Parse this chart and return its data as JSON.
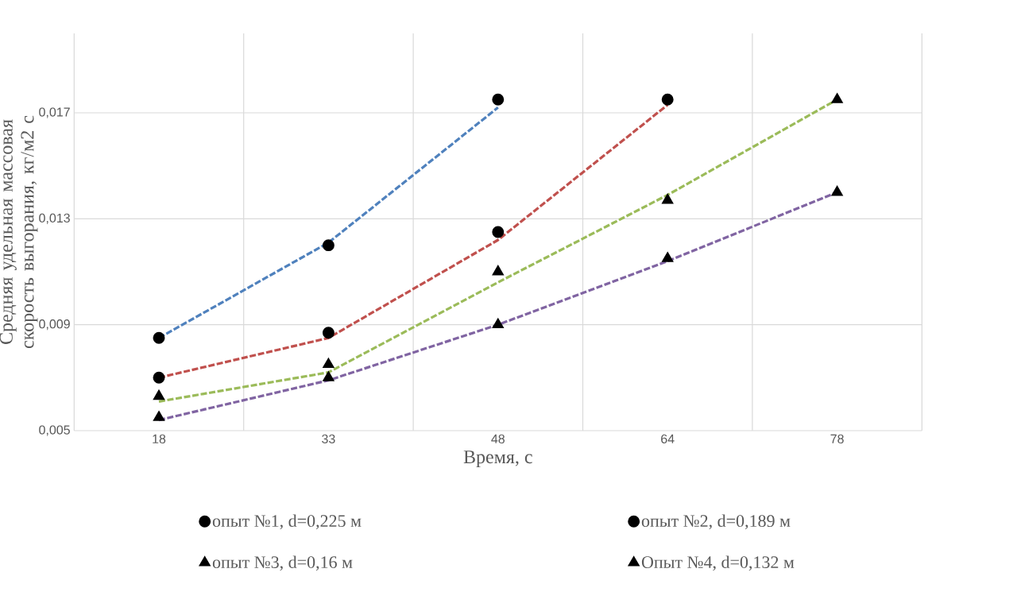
{
  "chart_data": {
    "type": "scatter",
    "xlabel": "Время, с",
    "ylabel": "Средняя удельная массовая скорость выгорания, кг/м2 с",
    "categories": [
      "18",
      "33",
      "48",
      "64",
      "78"
    ],
    "series": [
      {
        "name": "опыт №1, d=0,225 м",
        "color": "#000000",
        "marker": "circle",
        "values": [
          0.0085,
          0.012,
          0.0175,
          null,
          null
        ]
      },
      {
        "name": "опыт №2, d=0,189 м",
        "color": "#000000",
        "marker": "circle",
        "values": [
          0.007,
          0.0087,
          0.0125,
          0.0175,
          null
        ]
      },
      {
        "name": "опыт №3, d=0,16 м",
        "color": "#000000",
        "marker": "triangle",
        "values": [
          0.0063,
          0.0075,
          0.011,
          0.0137,
          0.0175
        ]
      },
      {
        "name": "Опыт №4, d=0,132 м",
        "color": "#000000",
        "marker": "triangle",
        "values": [
          0.0055,
          0.007,
          0.009,
          0.0115,
          0.014
        ]
      },
      {
        "type": "line",
        "color": "#4f81bd",
        "line_style": "dashed",
        "marker": "none",
        "values": [
          0.0085,
          0.0121,
          0.0172,
          null,
          null
        ]
      },
      {
        "type": "line",
        "color": "#c0504d",
        "line_style": "dashed",
        "marker": "none",
        "values": [
          0.007,
          0.0085,
          0.0122,
          0.0173,
          null
        ]
      },
      {
        "type": "line",
        "color": "#9bbb59",
        "line_style": "dashed",
        "marker": "none",
        "values": [
          0.0061,
          0.0072,
          0.0106,
          0.0139,
          0.0175
        ]
      },
      {
        "type": "line",
        "color": "#8064a2",
        "line_style": "dashed",
        "marker": "none",
        "values": [
          0.0054,
          0.0069,
          0.009,
          0.0114,
          0.014
        ]
      }
    ],
    "ylim": [
      0.005,
      0.02
    ],
    "yticks": [
      {
        "value": 0.005,
        "label": "0,005"
      },
      {
        "value": 0.009,
        "label": "0,009"
      },
      {
        "value": 0.013,
        "label": "0,013"
      },
      {
        "value": 0.017,
        "label": "0,017"
      }
    ],
    "grid": true,
    "legend": "bottom"
  }
}
